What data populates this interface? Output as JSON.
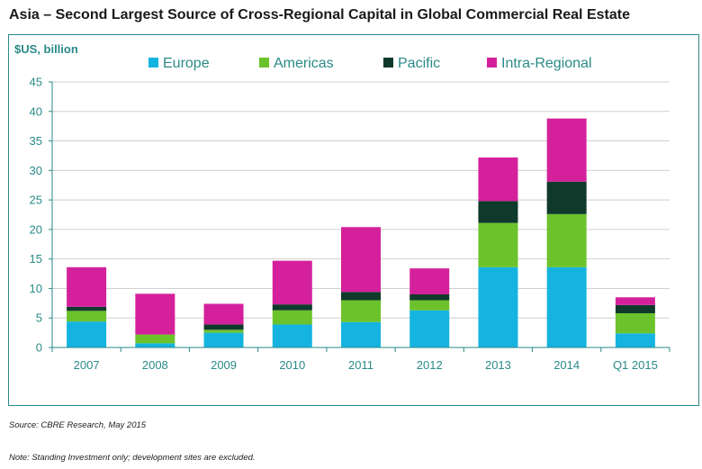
{
  "title": "Asia – Second Largest Source of Cross-Regional Capital in Global Commercial Real Estate",
  "source": "Source: CBRE Research, May 2015",
  "note": "Note: Standing Investment only; development sites are excluded.",
  "colors": {
    "axis": "#2a8a88",
    "Europe": "#15b4e0",
    "Americas": "#6cc22b",
    "Pacific": "#0f3a2b",
    "Intra-Regional": "#d4219b"
  },
  "chart_data": {
    "type": "bar",
    "stacked": true,
    "title": "Asia – Second Largest Source of Cross-Regional Capital in Global Commercial Real Estate",
    "ylabel": "$US, billion",
    "xlabel": "",
    "ylim": [
      0,
      45
    ],
    "yticks": [
      0,
      5,
      10,
      15,
      20,
      25,
      30,
      35,
      40,
      45
    ],
    "grid": true,
    "legend_position": "top",
    "categories": [
      "2007",
      "2008",
      "2009",
      "2010",
      "2011",
      "2012",
      "2013",
      "2014",
      "Q1 2015"
    ],
    "series": [
      {
        "name": "Europe",
        "values": [
          4.4,
          0.7,
          2.5,
          3.9,
          4.3,
          6.3,
          13.6,
          13.6,
          2.4
        ]
      },
      {
        "name": "Americas",
        "values": [
          1.8,
          1.5,
          0.5,
          2.4,
          3.7,
          1.7,
          7.5,
          9.0,
          3.4
        ]
      },
      {
        "name": "Pacific",
        "values": [
          0.7,
          0.0,
          0.9,
          1.0,
          1.4,
          1.0,
          3.7,
          5.5,
          1.4
        ]
      },
      {
        "name": "Intra-Regional",
        "values": [
          6.7,
          6.9,
          3.5,
          7.4,
          11.0,
          4.4,
          7.4,
          10.7,
          1.3
        ]
      }
    ]
  }
}
